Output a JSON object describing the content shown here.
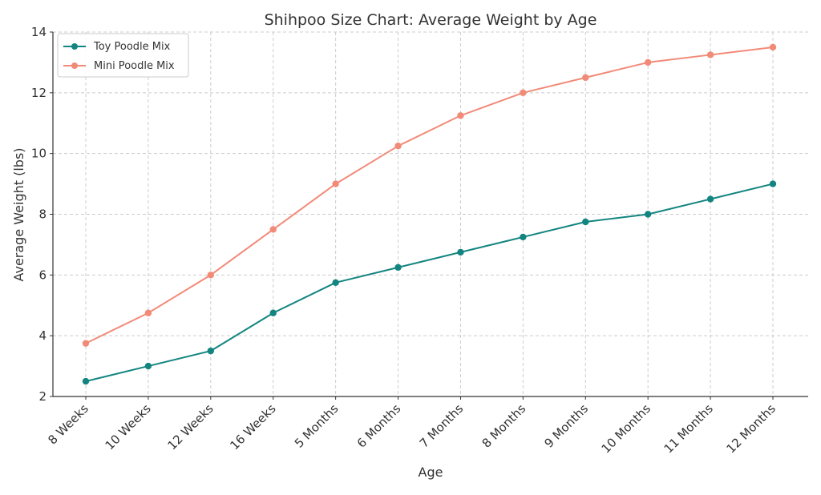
{
  "chart_data": {
    "type": "line",
    "title": "Shihpoo Size Chart: Average Weight by Age",
    "xlabel": "Age",
    "ylabel": "Average Weight (lbs)",
    "categories": [
      "8 Weeks",
      "10 Weeks",
      "12 Weeks",
      "16 Weeks",
      "5 Months",
      "6 Months",
      "7 Months",
      "8 Months",
      "9 Months",
      "10 Months",
      "11 Months",
      "12 Months"
    ],
    "ylim": [
      2,
      14
    ],
    "yticks": [
      2,
      4,
      6,
      8,
      10,
      12,
      14
    ],
    "grid": true,
    "legend_position": "top-left",
    "series": [
      {
        "name": "Toy Poodle Mix",
        "color": "#138580",
        "values": [
          2.5,
          3.0,
          3.5,
          4.75,
          5.75,
          6.25,
          6.75,
          7.25,
          7.75,
          8.0,
          8.5,
          9.0
        ]
      },
      {
        "name": "Mini Poodle Mix",
        "color": "#F28A78",
        "values": [
          3.75,
          4.75,
          6.0,
          7.5,
          9.0,
          10.25,
          11.25,
          12.0,
          12.5,
          13.0,
          13.25,
          13.5
        ]
      }
    ]
  }
}
